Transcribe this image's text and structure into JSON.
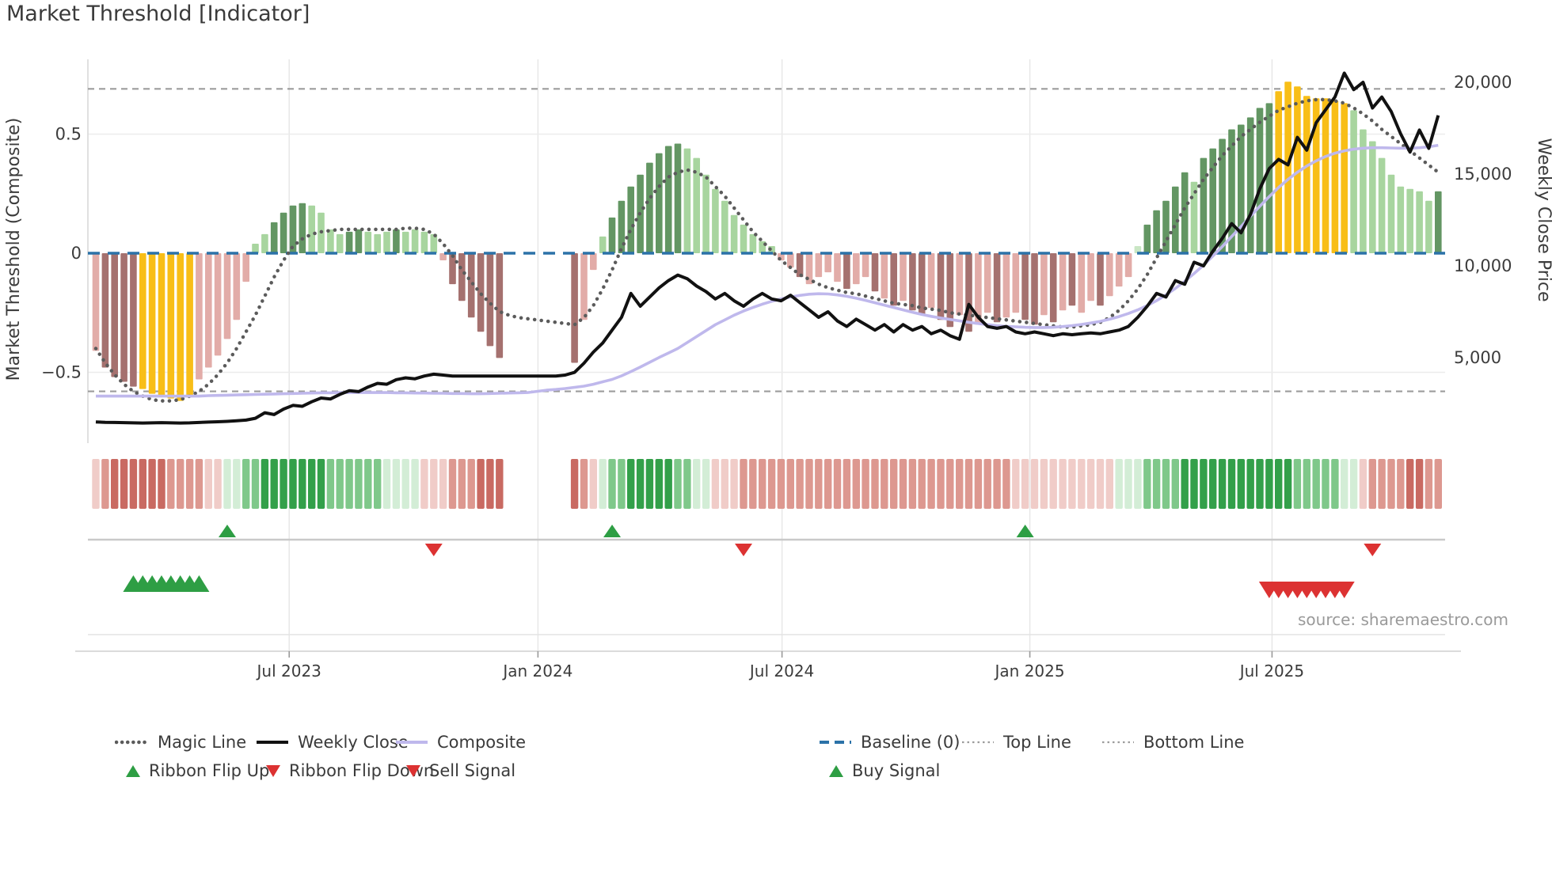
{
  "title": "Market Threshold [Indicator]",
  "source_text": "source: sharemaestro.com",
  "axes": {
    "left_title": "Market Threshold (Composite)",
    "right_title": "Weekly Close Price",
    "left_ticks": [
      {
        "label": "0.5",
        "value": 0.5
      },
      {
        "label": "0",
        "value": 0
      },
      {
        "label": "−0.5",
        "value": -0.5
      }
    ],
    "right_ticks": [
      {
        "label": "20,000",
        "value": 20000
      },
      {
        "label": "15,000",
        "value": 15000
      },
      {
        "label": "10,000",
        "value": 10000
      },
      {
        "label": "5,000",
        "value": 5000
      }
    ],
    "x_ticks": [
      {
        "label": "Jul 2023",
        "week": 20.6
      },
      {
        "label": "Jan 2024",
        "week": 47.1
      },
      {
        "label": "Jul 2024",
        "week": 73.1
      },
      {
        "label": "Jan 2025",
        "week": 99.5
      },
      {
        "label": "Jul 2025",
        "week": 125.3
      }
    ],
    "ylim_left": [
      -0.8,
      0.81
    ],
    "ylim_right": [
      0,
      21500
    ]
  },
  "chart_data": {
    "type": "bar",
    "subtype": "weekly-indicator-with-price-overlay",
    "weeks": 144,
    "grid": true,
    "reference_lines": {
      "baseline": 0,
      "top_line": 0.69,
      "bottom_line": -0.58
    },
    "palette": {
      "pk": "#E2ACA8",
      "mr": "#A5716F",
      "yl": "#F8BE17",
      "lg": "#A8D59F",
      "dg": "#639663",
      "pg": "#C9E6C4"
    },
    "ribbon_palette": {
      "r1": "#F0CCC8",
      "r2": "#DD9890",
      "r3": "#C96A62",
      "g1": "#D3EDD6",
      "g2": "#7FC88A",
      "g3": "#33A04A"
    },
    "line_colors": {
      "magic": "#5B5B5B",
      "weekly_close": "#111111",
      "composite": "#BFB8EC",
      "baseline": "#2B72A8",
      "top_bottom": "#9C9C9C",
      "signal_green": "#2E9E44",
      "signal_red": "#DC3232"
    },
    "bars": {
      "values": [
        -0.41,
        -0.48,
        -0.52,
        -0.54,
        -0.56,
        -0.57,
        -0.59,
        -0.6,
        -0.61,
        -0.62,
        -0.6,
        -0.53,
        -0.48,
        -0.43,
        -0.36,
        -0.28,
        -0.12,
        0.04,
        0.08,
        0.13,
        0.17,
        0.2,
        0.21,
        0.2,
        0.17,
        0.1,
        0.08,
        0.09,
        0.1,
        0.09,
        0.08,
        0.09,
        0.1,
        0.09,
        0.1,
        0.09,
        0.08,
        -0.03,
        -0.13,
        -0.2,
        -0.27,
        -0.33,
        -0.39,
        -0.44,
        null,
        null,
        null,
        null,
        null,
        null,
        null,
        -0.46,
        -0.28,
        -0.07,
        0.07,
        0.15,
        0.22,
        0.28,
        0.33,
        0.38,
        0.42,
        0.45,
        0.46,
        0.44,
        0.4,
        0.33,
        0.27,
        0.22,
        0.16,
        0.12,
        0.08,
        0.05,
        0.03,
        -0.03,
        -0.06,
        -0.1,
        -0.13,
        -0.1,
        -0.08,
        -0.12,
        -0.15,
        -0.13,
        -0.1,
        -0.16,
        -0.19,
        -0.22,
        -0.2,
        -0.24,
        -0.26,
        -0.23,
        -0.28,
        -0.31,
        -0.26,
        -0.33,
        -0.3,
        -0.25,
        -0.29,
        -0.27,
        -0.25,
        -0.28,
        -0.3,
        -0.26,
        -0.29,
        -0.24,
        -0.22,
        -0.25,
        -0.2,
        -0.22,
        -0.18,
        -0.14,
        -0.1,
        0.03,
        0.12,
        0.18,
        0.22,
        0.28,
        0.34,
        0.3,
        0.4,
        0.44,
        0.48,
        0.52,
        0.54,
        0.57,
        0.61,
        0.63,
        0.68,
        0.72,
        0.7,
        0.66,
        0.65,
        0.65,
        0.64,
        0.63,
        0.6,
        0.52,
        0.47,
        0.4,
        0.33,
        0.28,
        0.27,
        0.26,
        0.22,
        0.26
      ],
      "colors": [
        "pk",
        "mr",
        "mr",
        "mr",
        "mr",
        "yl",
        "yl",
        "yl",
        "yl",
        "yl",
        "yl",
        "pk",
        "pk",
        "pk",
        "pk",
        "pk",
        "pk",
        "lg",
        "lg",
        "dg",
        "dg",
        "dg",
        "dg",
        "lg",
        "lg",
        "lg",
        "lg",
        "dg",
        "dg",
        "lg",
        "lg",
        "lg",
        "dg",
        "lg",
        "lg",
        "lg",
        "lg",
        "pk",
        "mr",
        "mr",
        "mr",
        "mr",
        "mr",
        "mr",
        null,
        null,
        null,
        null,
        null,
        null,
        null,
        "mr",
        "pk",
        "pk",
        "lg",
        "dg",
        "dg",
        "dg",
        "dg",
        "dg",
        "dg",
        "dg",
        "dg",
        "lg",
        "lg",
        "lg",
        "lg",
        "lg",
        "lg",
        "lg",
        "lg",
        "lg",
        "lg",
        "pk",
        "pk",
        "mr",
        "pk",
        "pk",
        "pk",
        "pk",
        "mr",
        "pk",
        "pk",
        "mr",
        "pk",
        "mr",
        "pk",
        "mr",
        "mr",
        "pk",
        "mr",
        "mr",
        "pk",
        "mr",
        "pk",
        "pk",
        "mr",
        "pk",
        "pk",
        "mr",
        "mr",
        "pk",
        "mr",
        "pk",
        "mr",
        "pk",
        "pk",
        "mr",
        "pk",
        "pk",
        "pk",
        "pg",
        "dg",
        "dg",
        "dg",
        "dg",
        "dg",
        "lg",
        "dg",
        "dg",
        "dg",
        "dg",
        "dg",
        "dg",
        "dg",
        "dg",
        "yl",
        "yl",
        "yl",
        "yl",
        "yl",
        "yl",
        "yl",
        "yl",
        "lg",
        "lg",
        "lg",
        "lg",
        "lg",
        "lg",
        "lg",
        "lg",
        "lg",
        "dg"
      ]
    },
    "ribbon": [
      "r1",
      "r2",
      "r3",
      "r3",
      "r3",
      "r3",
      "r3",
      "r3",
      "r2",
      "r2",
      "r2",
      "r2",
      "r1",
      "r1",
      "g1",
      "g1",
      "g2",
      "g2",
      "g3",
      "g3",
      "g3",
      "g3",
      "g3",
      "g3",
      "g3",
      "g2",
      "g2",
      "g2",
      "g2",
      "g2",
      "g2",
      "g1",
      "g1",
      "g1",
      "g1",
      "r1",
      "r1",
      "r1",
      "r2",
      "r2",
      "r2",
      "r3",
      "r3",
      "r3",
      null,
      null,
      null,
      null,
      null,
      null,
      null,
      "r3",
      "r2",
      "r1",
      "g1",
      "g2",
      "g2",
      "g3",
      "g3",
      "g3",
      "g3",
      "g3",
      "g2",
      "g2",
      "g1",
      "g1",
      "r1",
      "r1",
      "r1",
      "r2",
      "r2",
      "r2",
      "r2",
      "r2",
      "r2",
      "r2",
      "r2",
      "r2",
      "r2",
      "r2",
      "r2",
      "r2",
      "r2",
      "r2",
      "r2",
      "r2",
      "r2",
      "r2",
      "r2",
      "r2",
      "r2",
      "r2",
      "r2",
      "r2",
      "r2",
      "r2",
      "r2",
      "r2",
      "r1",
      "r1",
      "r1",
      "r1",
      "r1",
      "r1",
      "r1",
      "r1",
      "r1",
      "r1",
      "r1",
      "g1",
      "g1",
      "g1",
      "g2",
      "g2",
      "g2",
      "g2",
      "g3",
      "g3",
      "g3",
      "g3",
      "g3",
      "g3",
      "g3",
      "g3",
      "g3",
      "g3",
      "g3",
      "g3",
      "g2",
      "g2",
      "g2",
      "g2",
      "g2",
      "g1",
      "g1",
      "r1",
      "r2",
      "r2",
      "r2",
      "r2",
      "r3",
      "r3",
      "r2",
      "r2"
    ],
    "magic_line": [
      -0.4,
      -0.46,
      -0.51,
      -0.55,
      -0.58,
      -0.6,
      -0.615,
      -0.62,
      -0.62,
      -0.615,
      -0.6,
      -0.58,
      -0.55,
      -0.51,
      -0.46,
      -0.4,
      -0.33,
      -0.26,
      -0.18,
      -0.1,
      -0.03,
      0.03,
      0.06,
      0.08,
      0.09,
      0.095,
      0.1,
      0.1,
      0.1,
      0.1,
      0.1,
      0.1,
      0.1,
      0.105,
      0.105,
      0.1,
      0.08,
      0.04,
      -0.01,
      -0.07,
      -0.12,
      -0.17,
      -0.21,
      -0.245,
      -0.26,
      -0.27,
      -0.275,
      -0.28,
      -0.285,
      -0.29,
      -0.295,
      -0.3,
      -0.27,
      -0.22,
      -0.15,
      -0.07,
      0.02,
      0.1,
      0.17,
      0.23,
      0.28,
      0.32,
      0.34,
      0.35,
      0.34,
      0.32,
      0.28,
      0.24,
      0.19,
      0.14,
      0.09,
      0.05,
      0.01,
      -0.03,
      -0.06,
      -0.09,
      -0.11,
      -0.13,
      -0.145,
      -0.155,
      -0.165,
      -0.17,
      -0.18,
      -0.19,
      -0.2,
      -0.21,
      -0.215,
      -0.22,
      -0.23,
      -0.235,
      -0.24,
      -0.25,
      -0.255,
      -0.26,
      -0.265,
      -0.27,
      -0.275,
      -0.28,
      -0.285,
      -0.29,
      -0.295,
      -0.3,
      -0.305,
      -0.31,
      -0.31,
      -0.305,
      -0.3,
      -0.29,
      -0.27,
      -0.24,
      -0.2,
      -0.15,
      -0.09,
      -0.02,
      0.05,
      0.12,
      0.19,
      0.25,
      0.31,
      0.36,
      0.41,
      0.45,
      0.49,
      0.52,
      0.55,
      0.575,
      0.6,
      0.615,
      0.63,
      0.64,
      0.645,
      0.645,
      0.64,
      0.63,
      0.61,
      0.585,
      0.555,
      0.52,
      0.49,
      0.46,
      0.43,
      0.4,
      0.37,
      0.34
    ],
    "composite_line": [
      -0.6,
      -0.6,
      -0.6,
      -0.6,
      -0.6,
      -0.6,
      -0.6,
      -0.6,
      -0.6,
      -0.6,
      -0.6,
      -0.6,
      -0.598,
      -0.597,
      -0.596,
      -0.595,
      -0.594,
      -0.593,
      -0.592,
      -0.591,
      -0.59,
      -0.589,
      -0.588,
      -0.587,
      -0.586,
      -0.586,
      -0.585,
      -0.585,
      -0.585,
      -0.585,
      -0.585,
      -0.585,
      -0.586,
      -0.586,
      -0.587,
      -0.587,
      -0.588,
      -0.588,
      -0.589,
      -0.589,
      -0.59,
      -0.59,
      -0.589,
      -0.588,
      -0.587,
      -0.586,
      -0.585,
      -0.58,
      -0.575,
      -0.572,
      -0.568,
      -0.563,
      -0.558,
      -0.55,
      -0.54,
      -0.53,
      -0.515,
      -0.497,
      -0.478,
      -0.458,
      -0.438,
      -0.419,
      -0.4,
      -0.375,
      -0.35,
      -0.325,
      -0.3,
      -0.28,
      -0.26,
      -0.243,
      -0.228,
      -0.214,
      -0.202,
      -0.192,
      -0.184,
      -0.177,
      -0.172,
      -0.17,
      -0.171,
      -0.175,
      -0.181,
      -0.189,
      -0.198,
      -0.208,
      -0.218,
      -0.228,
      -0.238,
      -0.248,
      -0.257,
      -0.265,
      -0.272,
      -0.278,
      -0.284,
      -0.29,
      -0.295,
      -0.3,
      -0.304,
      -0.307,
      -0.309,
      -0.311,
      -0.312,
      -0.312,
      -0.311,
      -0.308,
      -0.304,
      -0.299,
      -0.293,
      -0.286,
      -0.277,
      -0.266,
      -0.253,
      -0.238,
      -0.22,
      -0.199,
      -0.175,
      -0.148,
      -0.118,
      -0.085,
      -0.05,
      -0.012,
      0.028,
      0.07,
      0.112,
      0.155,
      0.197,
      0.238,
      0.276,
      0.31,
      0.34,
      0.366,
      0.388,
      0.406,
      0.42,
      0.43,
      0.437,
      0.441,
      0.443,
      0.443,
      0.442,
      0.441,
      0.441,
      0.443,
      0.447,
      0.453
    ],
    "weekly_close": [
      1500,
      1480,
      1470,
      1460,
      1450,
      1440,
      1450,
      1460,
      1450,
      1440,
      1450,
      1470,
      1490,
      1510,
      1530,
      1560,
      1600,
      1700,
      2000,
      1900,
      2200,
      2400,
      2350,
      2600,
      2800,
      2750,
      3000,
      3200,
      3150,
      3400,
      3600,
      3550,
      3800,
      3900,
      3850,
      4000,
      4100,
      4050,
      4000,
      4000,
      4000,
      4000,
      4000,
      4000,
      4000,
      4000,
      4000,
      4000,
      4000,
      4000,
      4050,
      4200,
      4700,
      5300,
      5800,
      6500,
      7200,
      8500,
      7800,
      8300,
      8800,
      9200,
      9500,
      9300,
      8900,
      8600,
      8200,
      8500,
      8100,
      7800,
      8200,
      8500,
      8200,
      8100,
      8400,
      8000,
      7600,
      7200,
      7500,
      7000,
      6700,
      7100,
      6800,
      6500,
      6800,
      6400,
      6800,
      6500,
      6700,
      6300,
      6500,
      6200,
      6000,
      7900,
      7200,
      6700,
      6600,
      6700,
      6400,
      6300,
      6400,
      6300,
      6200,
      6300,
      6250,
      6300,
      6350,
      6300,
      6400,
      6500,
      6700,
      7200,
      7800,
      8500,
      8300,
      9200,
      9000,
      10200,
      10000,
      10800,
      11500,
      12300,
      11800,
      12800,
      14200,
      15300,
      15800,
      15500,
      17000,
      16300,
      17800,
      18500,
      19200,
      20500,
      19600,
      20000,
      18600,
      19200,
      18400,
      17200,
      16200,
      17400,
      16400,
      18200
    ],
    "signals": {
      "ribbon_flip_up_weeks": [
        14,
        55,
        99
      ],
      "ribbon_flip_down_weeks": [
        36,
        69,
        136
      ],
      "buy_signal_weeks": [
        4,
        5,
        6,
        7,
        8,
        9,
        10,
        11
      ],
      "sell_signal_weeks": [
        125,
        126,
        127,
        128,
        129,
        130,
        131,
        132,
        133
      ]
    }
  },
  "legend": {
    "row1": [
      {
        "label": "Magic Line",
        "style": "dotted-thick",
        "color": "#5B5B5B",
        "icon": "dotted-line-icon"
      },
      {
        "label": "Weekly Close",
        "style": "solid",
        "color": "#111111",
        "icon": "solid-line-icon"
      },
      {
        "label": "Composite",
        "style": "solid",
        "color": "#BFB8EC",
        "icon": "solid-line-icon"
      },
      {
        "label": "Baseline (0)",
        "style": "dashed",
        "color": "#2B72A8",
        "icon": "dashed-line-icon"
      },
      {
        "label": "Top Line",
        "style": "dotted-thin",
        "color": "#9C9C9C",
        "icon": "dotted-line-icon"
      },
      {
        "label": "Bottom Line",
        "style": "dotted-thin",
        "color": "#9C9C9C",
        "icon": "dotted-line-icon"
      }
    ],
    "row2": [
      {
        "label": "Ribbon Flip Up",
        "style": "triangle-up",
        "color": "#2E9E44",
        "icon": "triangle-up-icon"
      },
      {
        "label": "Ribbon Flip Down",
        "style": "triangle-down",
        "color": "#DC3232",
        "icon": "triangle-down-icon"
      },
      {
        "label": "Sell Signal",
        "style": "triangle-down",
        "color": "#DC3232",
        "icon": "triangle-down-icon"
      },
      {
        "label": "Buy Signal",
        "style": "triangle-up",
        "color": "#2E9E44",
        "icon": "triangle-up-icon"
      }
    ]
  }
}
